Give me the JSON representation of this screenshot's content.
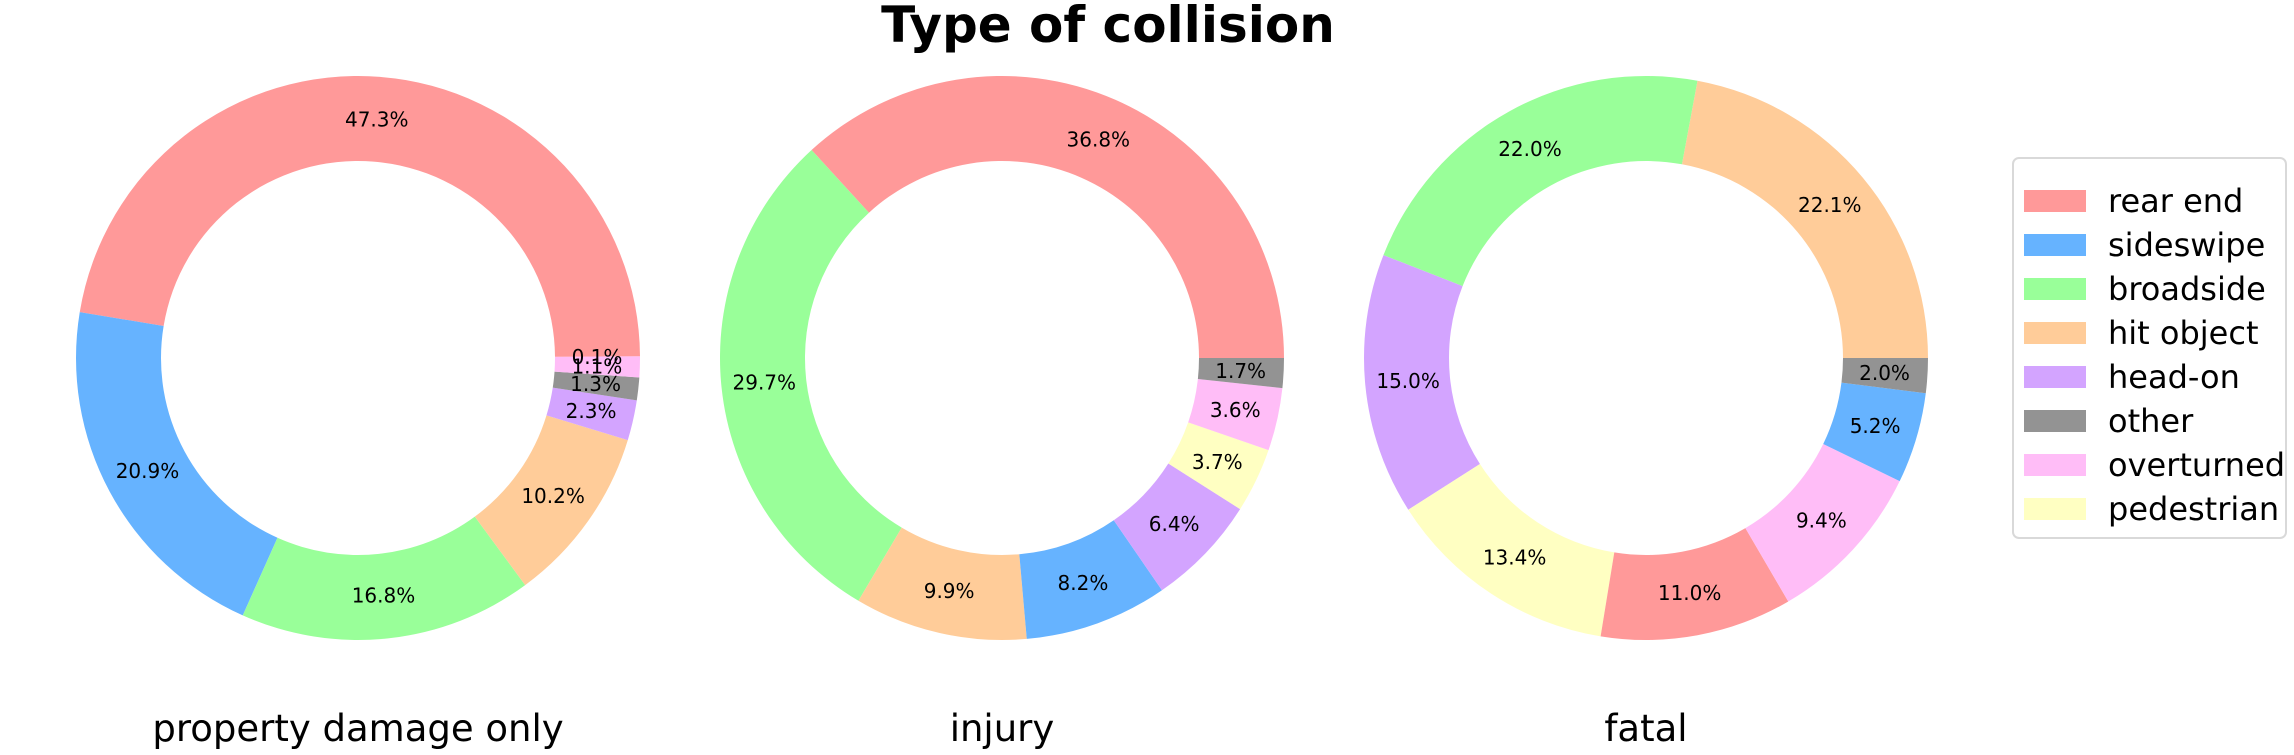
{
  "chart_data": {
    "type": "pie",
    "title": "Type of collision",
    "legend": {
      "placement": "right",
      "entries": [
        {
          "name": "rear end",
          "color": "#ff9999"
        },
        {
          "name": "sideswipe",
          "color": "#66b3ff"
        },
        {
          "name": "broadside",
          "color": "#99ff99"
        },
        {
          "name": "hit object",
          "color": "#ffcc99"
        },
        {
          "name": "head-on",
          "color": "#d3a4ff"
        },
        {
          "name": "other",
          "color": "#939393"
        },
        {
          "name": "overturned",
          "color": "#ffbdf7"
        },
        {
          "name": "pedestrian",
          "color": "#ffffc2"
        }
      ]
    },
    "pies": [
      {
        "name": "property damage only",
        "slices": [
          {
            "category": "overturned",
            "value": 0.1,
            "label": "0.1%"
          },
          {
            "category": "rear end",
            "value": 47.3,
            "label": "47.3%"
          },
          {
            "category": "sideswipe",
            "value": 20.9,
            "label": "20.9%"
          },
          {
            "category": "broadside",
            "value": 16.8,
            "label": "16.8%"
          },
          {
            "category": "hit object",
            "value": 10.2,
            "label": "10.2%"
          },
          {
            "category": "head-on",
            "value": 2.3,
            "label": "2.3%"
          },
          {
            "category": "other",
            "value": 1.3,
            "label": "1.3%"
          },
          {
            "category": "overturned",
            "value": 1.1,
            "label": "1.1%"
          }
        ]
      },
      {
        "name": "injury",
        "slices": [
          {
            "category": "rear end",
            "value": 36.8,
            "label": "36.8%"
          },
          {
            "category": "broadside",
            "value": 29.7,
            "label": "29.7%"
          },
          {
            "category": "hit object",
            "value": 9.9,
            "label": "9.9%"
          },
          {
            "category": "sideswipe",
            "value": 8.2,
            "label": "8.2%"
          },
          {
            "category": "head-on",
            "value": 6.4,
            "label": "6.4%"
          },
          {
            "category": "pedestrian",
            "value": 3.7,
            "label": "3.7%"
          },
          {
            "category": "overturned",
            "value": 3.6,
            "label": "3.6%"
          },
          {
            "category": "other",
            "value": 1.7,
            "label": "1.7%"
          }
        ]
      },
      {
        "name": "fatal",
        "slices": [
          {
            "category": "hit object",
            "value": 22.1,
            "label": "22.1%"
          },
          {
            "category": "broadside",
            "value": 22.0,
            "label": "22.0%"
          },
          {
            "category": "head-on",
            "value": 15.0,
            "label": "15.0%"
          },
          {
            "category": "pedestrian",
            "value": 13.4,
            "label": "13.4%"
          },
          {
            "category": "rear end",
            "value": 11.0,
            "label": "11.0%"
          },
          {
            "category": "overturned",
            "value": 9.4,
            "label": "9.4%"
          },
          {
            "category": "sideswipe",
            "value": 5.2,
            "label": "5.2%"
          },
          {
            "category": "other",
            "value": 2.0,
            "label": "2.0%"
          }
        ]
      }
    ]
  }
}
